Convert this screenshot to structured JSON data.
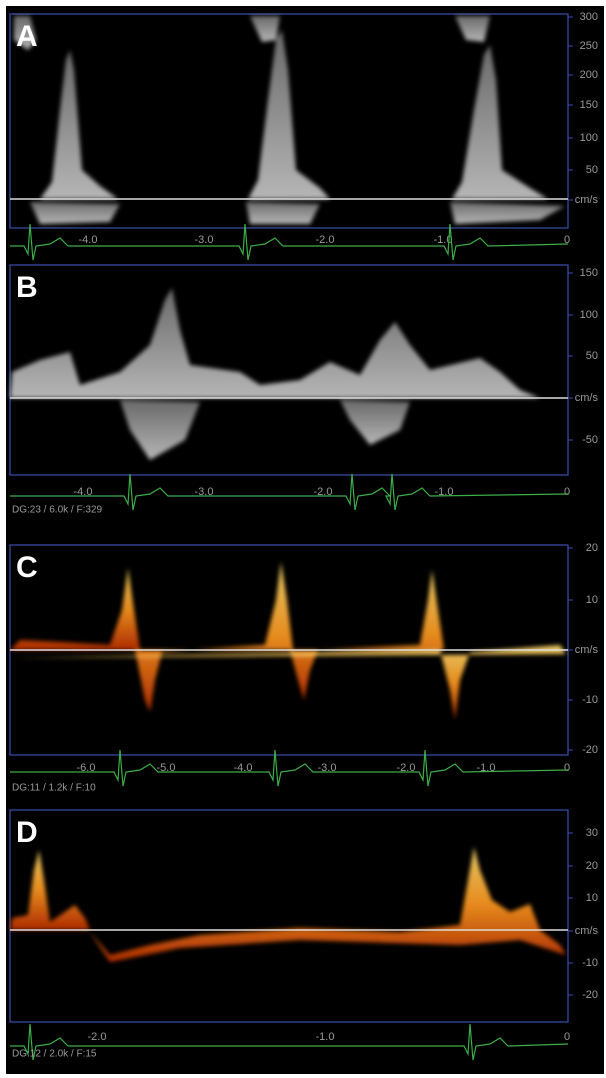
{
  "panels": [
    {
      "label": "A",
      "y_ticks": [
        "300",
        "250",
        "200",
        "150",
        "100",
        "50",
        "cm/s"
      ],
      "x_ticks": [
        "-4.0",
        "-3.0",
        "-2.0",
        "-1.0",
        "0"
      ]
    },
    {
      "label": "B",
      "y_ticks": [
        "150",
        "100",
        "50",
        "cm/s",
        "-50"
      ],
      "x_ticks": [
        "-4.0",
        "-3.0",
        "-2.0",
        "-1.0",
        "0"
      ],
      "settings": "DG:23  / 6.0k   / F:329"
    },
    {
      "label": "C",
      "y_ticks": [
        "20",
        "10",
        "cm/s",
        "-10",
        "-20"
      ],
      "x_ticks": [
        "-6.0",
        "-5.0",
        "-4.0",
        "-3.0",
        "-2.0",
        "-1.0",
        "0"
      ],
      "settings": "DG:11  / 1.2k   / F:10"
    },
    {
      "label": "D",
      "y_ticks": [
        "30",
        "20",
        "10",
        "cm/s",
        "-10",
        "-20"
      ],
      "x_ticks": [
        "-2.0",
        "-1.0",
        "0"
      ],
      "settings": "DG:12  / 2.0k   / F:15"
    }
  ]
}
